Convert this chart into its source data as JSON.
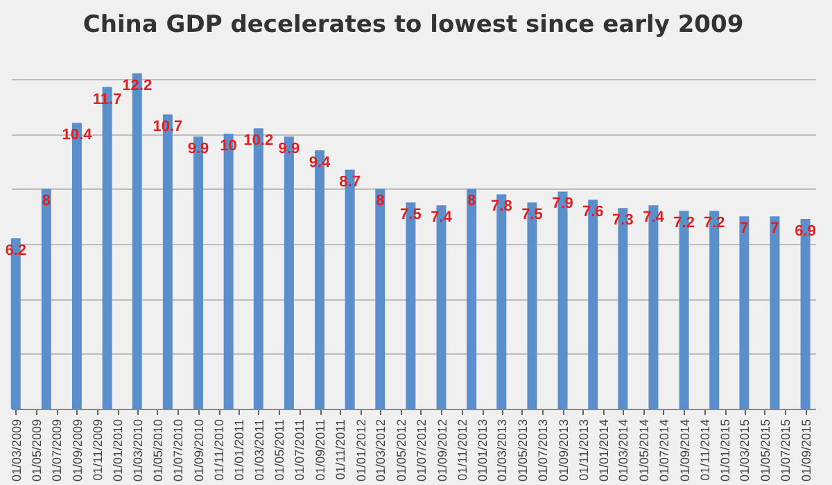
{
  "chart_data": {
    "type": "bar",
    "title": "China GDP decelerates to lowest since early 2009",
    "x": [
      "2009-03-01",
      "2009-06-01",
      "2009-09-01",
      "2009-12-01",
      "2010-03-01",
      "2010-06-01",
      "2010-09-01",
      "2010-12-01",
      "2011-03-01",
      "2011-06-01",
      "2011-09-01",
      "2011-12-01",
      "2012-03-01",
      "2012-06-01",
      "2012-09-01",
      "2012-12-01",
      "2013-03-01",
      "2013-06-01",
      "2013-09-01",
      "2013-12-01",
      "2014-03-01",
      "2014-06-01",
      "2014-09-01",
      "2014-12-01",
      "2015-03-01",
      "2015-06-01",
      "2015-09-01"
    ],
    "values": [
      6.2,
      8,
      10.4,
      11.7,
      12.2,
      10.7,
      9.9,
      10,
      10.2,
      9.9,
      9.4,
      8.7,
      8,
      7.5,
      7.4,
      8,
      7.8,
      7.5,
      7.9,
      7.6,
      7.3,
      7.4,
      7.2,
      7.2,
      7,
      7,
      6.9
    ],
    "color": "#5b8fcb",
    "data_labels": true,
    "xlim": [
      "2009-02-15",
      "2015-10-01"
    ],
    "xticks": [
      {
        "value": "2009-03-01",
        "label": "01/03/2009"
      },
      {
        "value": "2009-05-01",
        "label": "01/05/2009"
      },
      {
        "value": "2009-07-01",
        "label": "01/07/2009"
      },
      {
        "value": "2009-09-01",
        "label": "01/09/2009"
      },
      {
        "value": "2009-11-01",
        "label": "01/11/2009"
      },
      {
        "value": "2010-01-01",
        "label": "01/01/2010"
      },
      {
        "value": "2010-03-01",
        "label": "01/03/2010"
      },
      {
        "value": "2010-05-01",
        "label": "01/05/2010"
      },
      {
        "value": "2010-07-01",
        "label": "01/07/2010"
      },
      {
        "value": "2010-09-01",
        "label": "01/09/2010"
      },
      {
        "value": "2010-11-01",
        "label": "01/11/2010"
      },
      {
        "value": "2011-01-01",
        "label": "01/01/2011"
      },
      {
        "value": "2011-03-01",
        "label": "01/03/2011"
      },
      {
        "value": "2011-05-01",
        "label": "01/05/2011"
      },
      {
        "value": "2011-07-01",
        "label": "01/07/2011"
      },
      {
        "value": "2011-09-01",
        "label": "01/09/2011"
      },
      {
        "value": "2011-11-01",
        "label": "01/11/2011"
      },
      {
        "value": "2012-01-01",
        "label": "01/01/2012"
      },
      {
        "value": "2012-03-01",
        "label": "01/03/2012"
      },
      {
        "value": "2012-05-01",
        "label": "01/05/2012"
      },
      {
        "value": "2012-07-01",
        "label": "01/07/2012"
      },
      {
        "value": "2012-09-01",
        "label": "01/09/2012"
      },
      {
        "value": "2012-11-01",
        "label": "01/11/2012"
      },
      {
        "value": "2013-01-01",
        "label": "01/01/2013"
      },
      {
        "value": "2013-03-01",
        "label": "01/03/2013"
      },
      {
        "value": "2013-05-01",
        "label": "01/05/2013"
      },
      {
        "value": "2013-07-01",
        "label": "01/07/2013"
      },
      {
        "value": "2013-09-01",
        "label": "01/09/2013"
      },
      {
        "value": "2013-11-01",
        "label": "01/11/2013"
      },
      {
        "value": "2014-01-01",
        "label": "01/01/2014"
      },
      {
        "value": "2014-03-01",
        "label": "01/03/2014"
      },
      {
        "value": "2014-05-01",
        "label": "01/05/2014"
      },
      {
        "value": "2014-07-01",
        "label": "01/07/2014"
      },
      {
        "value": "2014-09-01",
        "label": "01/09/2014"
      },
      {
        "value": "2014-11-01",
        "label": "01/11/2014"
      },
      {
        "value": "2015-01-01",
        "label": "01/01/2015"
      },
      {
        "value": "2015-03-01",
        "label": "01/03/2015"
      },
      {
        "value": "2015-05-01",
        "label": "01/05/2015"
      },
      {
        "value": "2015-07-01",
        "label": "01/07/2015"
      },
      {
        "value": "2015-09-01",
        "label": "01/09/2015"
      }
    ],
    "grid": "y",
    "tick_labels": "x"
  }
}
